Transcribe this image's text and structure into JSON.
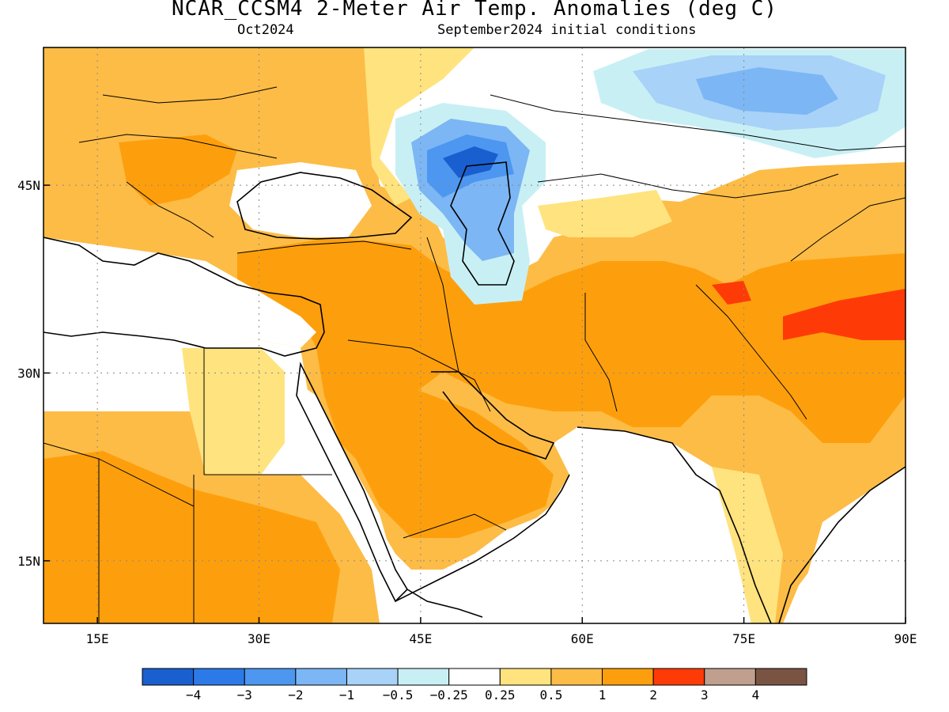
{
  "title": "NCAR_CCSM4 2-Meter Air Temp. Anomalies (deg C)",
  "subtitle_date": "Oct2024",
  "subtitle_init": "September2024 initial conditions",
  "lat_ticks": [
    {
      "lat": 45,
      "label": "45N"
    },
    {
      "lat": 30,
      "label": "30N"
    },
    {
      "lat": 15,
      "label": "15N"
    }
  ],
  "lon_ticks": [
    {
      "lon": 15,
      "label": "15E"
    },
    {
      "lon": 30,
      "label": "30E"
    },
    {
      "lon": 45,
      "label": "45E"
    },
    {
      "lon": 60,
      "label": "60E"
    },
    {
      "lon": 75,
      "label": "75E"
    },
    {
      "lon": 90,
      "label": "90E"
    }
  ],
  "colorbar": {
    "colors": [
      "#1a5fcf",
      "#2c7ae8",
      "#4d97f0",
      "#7cb6f4",
      "#a8d2f7",
      "#c8f0f4",
      "#ffffff",
      "#ffe37e",
      "#fdbc46",
      "#fd9f0c",
      "#fe3b07",
      "#c09f8e",
      "#7a5443"
    ],
    "labels": [
      "-4",
      "-3",
      "-2",
      "-1",
      "-0.5",
      "-0.25",
      "0.25",
      "0.5",
      "1",
      "2",
      "3",
      "4"
    ]
  }
}
